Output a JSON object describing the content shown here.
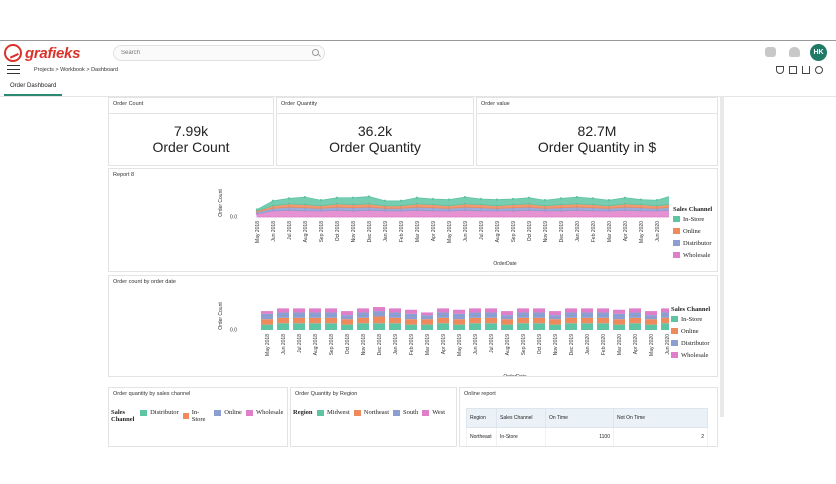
{
  "header": {
    "logo_text": "grafieks",
    "search_placeholder": "Search",
    "avatar_initials": "HK"
  },
  "breadcrumb": "Projects > Workbook > Dashboard",
  "tabs": [
    {
      "label": "Order Dashboard"
    }
  ],
  "colors": {
    "in_store": "#5ec4a4",
    "online": "#ef8a5c",
    "distributor": "#8c9fd0",
    "wholesale": "#df7fc9",
    "accent": "#2c8a73",
    "logo": "#d9332a"
  },
  "kpis": [
    {
      "title": "Order Count",
      "value": "7.99k",
      "label": "Order Count"
    },
    {
      "title": "Order Quantity",
      "value": "36.2k",
      "label": "Order Quantity"
    },
    {
      "title": "Order value",
      "value": "82.7M",
      "label": "Order Quantity in $"
    }
  ],
  "legend": {
    "title": "Sales Channel",
    "items": [
      "In-Store",
      "Online",
      "Distributor",
      "Wholesale"
    ]
  },
  "chart_data": [
    {
      "type": "area",
      "title": "Report 8",
      "xlabel": "OrderDate",
      "ylabel": "Order Count",
      "ytick": "0.0",
      "x": [
        "May 2018",
        "Jun 2018",
        "Jul 2018",
        "Aug 2018",
        "Sep 2018",
        "Oct 2018",
        "Nov 2018",
        "Dec 2018",
        "Jan 2019",
        "Feb 2019",
        "Mar 2019",
        "Apr 2019",
        "May 2019",
        "Jun 2019",
        "Jul 2019",
        "Aug 2019",
        "Sep 2019",
        "Oct 2019",
        "Nov 2019",
        "Dec 2019",
        "Jan 2020",
        "Feb 2020",
        "Mar 2020",
        "Apr 2020",
        "May 2020",
        "Jun 2020",
        "Jul 2020",
        "Aug 2020",
        "Sep 2020",
        "Oct 2020",
        "Nov 2020",
        "Dec 2020"
      ],
      "series": [
        {
          "name": "Wholesale",
          "values": [
            5,
            10,
            11,
            10,
            10,
            11,
            10,
            11,
            10,
            10,
            11,
            10,
            10,
            11,
            10,
            10,
            10,
            11,
            10,
            10,
            11,
            10,
            10,
            11,
            10,
            10,
            11,
            10,
            10,
            11,
            10,
            10
          ]
        },
        {
          "name": "Distributor",
          "values": [
            3,
            4,
            5,
            5,
            4,
            5,
            5,
            5,
            4,
            4,
            5,
            5,
            4,
            5,
            5,
            4,
            5,
            5,
            4,
            5,
            5,
            5,
            4,
            5,
            5,
            4,
            5,
            5,
            4,
            5,
            5,
            4
          ]
        },
        {
          "name": "Online",
          "values": [
            2,
            4,
            5,
            5,
            4,
            5,
            5,
            5,
            4,
            4,
            5,
            5,
            4,
            5,
            5,
            4,
            5,
            5,
            4,
            5,
            5,
            5,
            4,
            5,
            5,
            4,
            5,
            5,
            4,
            5,
            5,
            4
          ]
        },
        {
          "name": "In-Store",
          "values": [
            2,
            8,
            9,
            12,
            9,
            10,
            11,
            12,
            8,
            8,
            10,
            9,
            10,
            11,
            9,
            10,
            9,
            10,
            9,
            10,
            11,
            10,
            9,
            10,
            8,
            9,
            14,
            9,
            9,
            10,
            9,
            6
          ]
        }
      ]
    },
    {
      "type": "bar",
      "title": "Order count by order date",
      "xlabel": "OrderDate",
      "ylabel": "Order Count",
      "ytick": "0.0",
      "x": [
        "May 2018",
        "Jun 2018",
        "Jul 2018",
        "Aug 2018",
        "Sep 2018",
        "Oct 2018",
        "Nov 2018",
        "Dec 2018",
        "Jan 2019",
        "Feb 2019",
        "Mar 2019",
        "Apr 2019",
        "May 2019",
        "Jun 2019",
        "Jul 2019",
        "Aug 2019",
        "Sep 2019",
        "Oct 2019",
        "Nov 2019",
        "Dec 2019",
        "Jan 2020",
        "Feb 2020",
        "Mar 2020",
        "Apr 2020",
        "May 2020",
        "Jun 2020",
        "Jul 2020",
        "Aug 2020",
        "Sep 2020",
        "Oct 2020",
        "Nov 2020",
        "Dec 2020"
      ],
      "series": [
        {
          "name": "In-Store",
          "values": [
            4,
            5,
            5,
            5,
            5,
            4,
            5,
            5,
            5,
            4,
            4,
            5,
            4,
            5,
            5,
            4,
            5,
            5,
            4,
            5,
            5,
            5,
            4,
            5,
            4,
            5,
            5,
            4,
            5,
            5,
            4,
            4
          ]
        },
        {
          "name": "Online",
          "values": [
            4,
            4,
            4,
            4,
            4,
            4,
            4,
            5,
            4,
            4,
            4,
            4,
            4,
            4,
            4,
            4,
            4,
            4,
            4,
            4,
            4,
            4,
            4,
            4,
            4,
            4,
            4,
            4,
            4,
            4,
            4,
            4
          ]
        },
        {
          "name": "Distributor",
          "values": [
            4,
            4,
            4,
            4,
            4,
            3,
            4,
            4,
            4,
            4,
            3,
            4,
            4,
            4,
            4,
            3,
            4,
            4,
            3,
            4,
            4,
            4,
            4,
            4,
            3,
            4,
            4,
            4,
            4,
            4,
            4,
            4
          ]
        },
        {
          "name": "Wholesale",
          "values": [
            2,
            3,
            3,
            3,
            3,
            3,
            3,
            3,
            3,
            3,
            2,
            3,
            3,
            3,
            3,
            3,
            3,
            3,
            3,
            3,
            3,
            3,
            3,
            3,
            3,
            3,
            3,
            3,
            3,
            3,
            3,
            3
          ]
        }
      ]
    }
  ],
  "bottom_panels": {
    "sales_channel": {
      "title": "Order quantity by sales channel",
      "legend_title": "Sales Channel",
      "items": [
        "Distributor",
        "In-Store",
        "Online",
        "Wholesale"
      ]
    },
    "region": {
      "title": "Order Quantity by Region",
      "legend_title": "Region",
      "items": [
        "Midwest",
        "Northeast",
        "South",
        "West"
      ]
    },
    "online_report": {
      "title": "Online report",
      "columns": [
        "Region",
        "Sales Channel",
        "On Time",
        "Not On Time"
      ],
      "rows": [
        [
          "Northeast",
          "In-Store",
          "1100",
          "2"
        ]
      ]
    }
  }
}
